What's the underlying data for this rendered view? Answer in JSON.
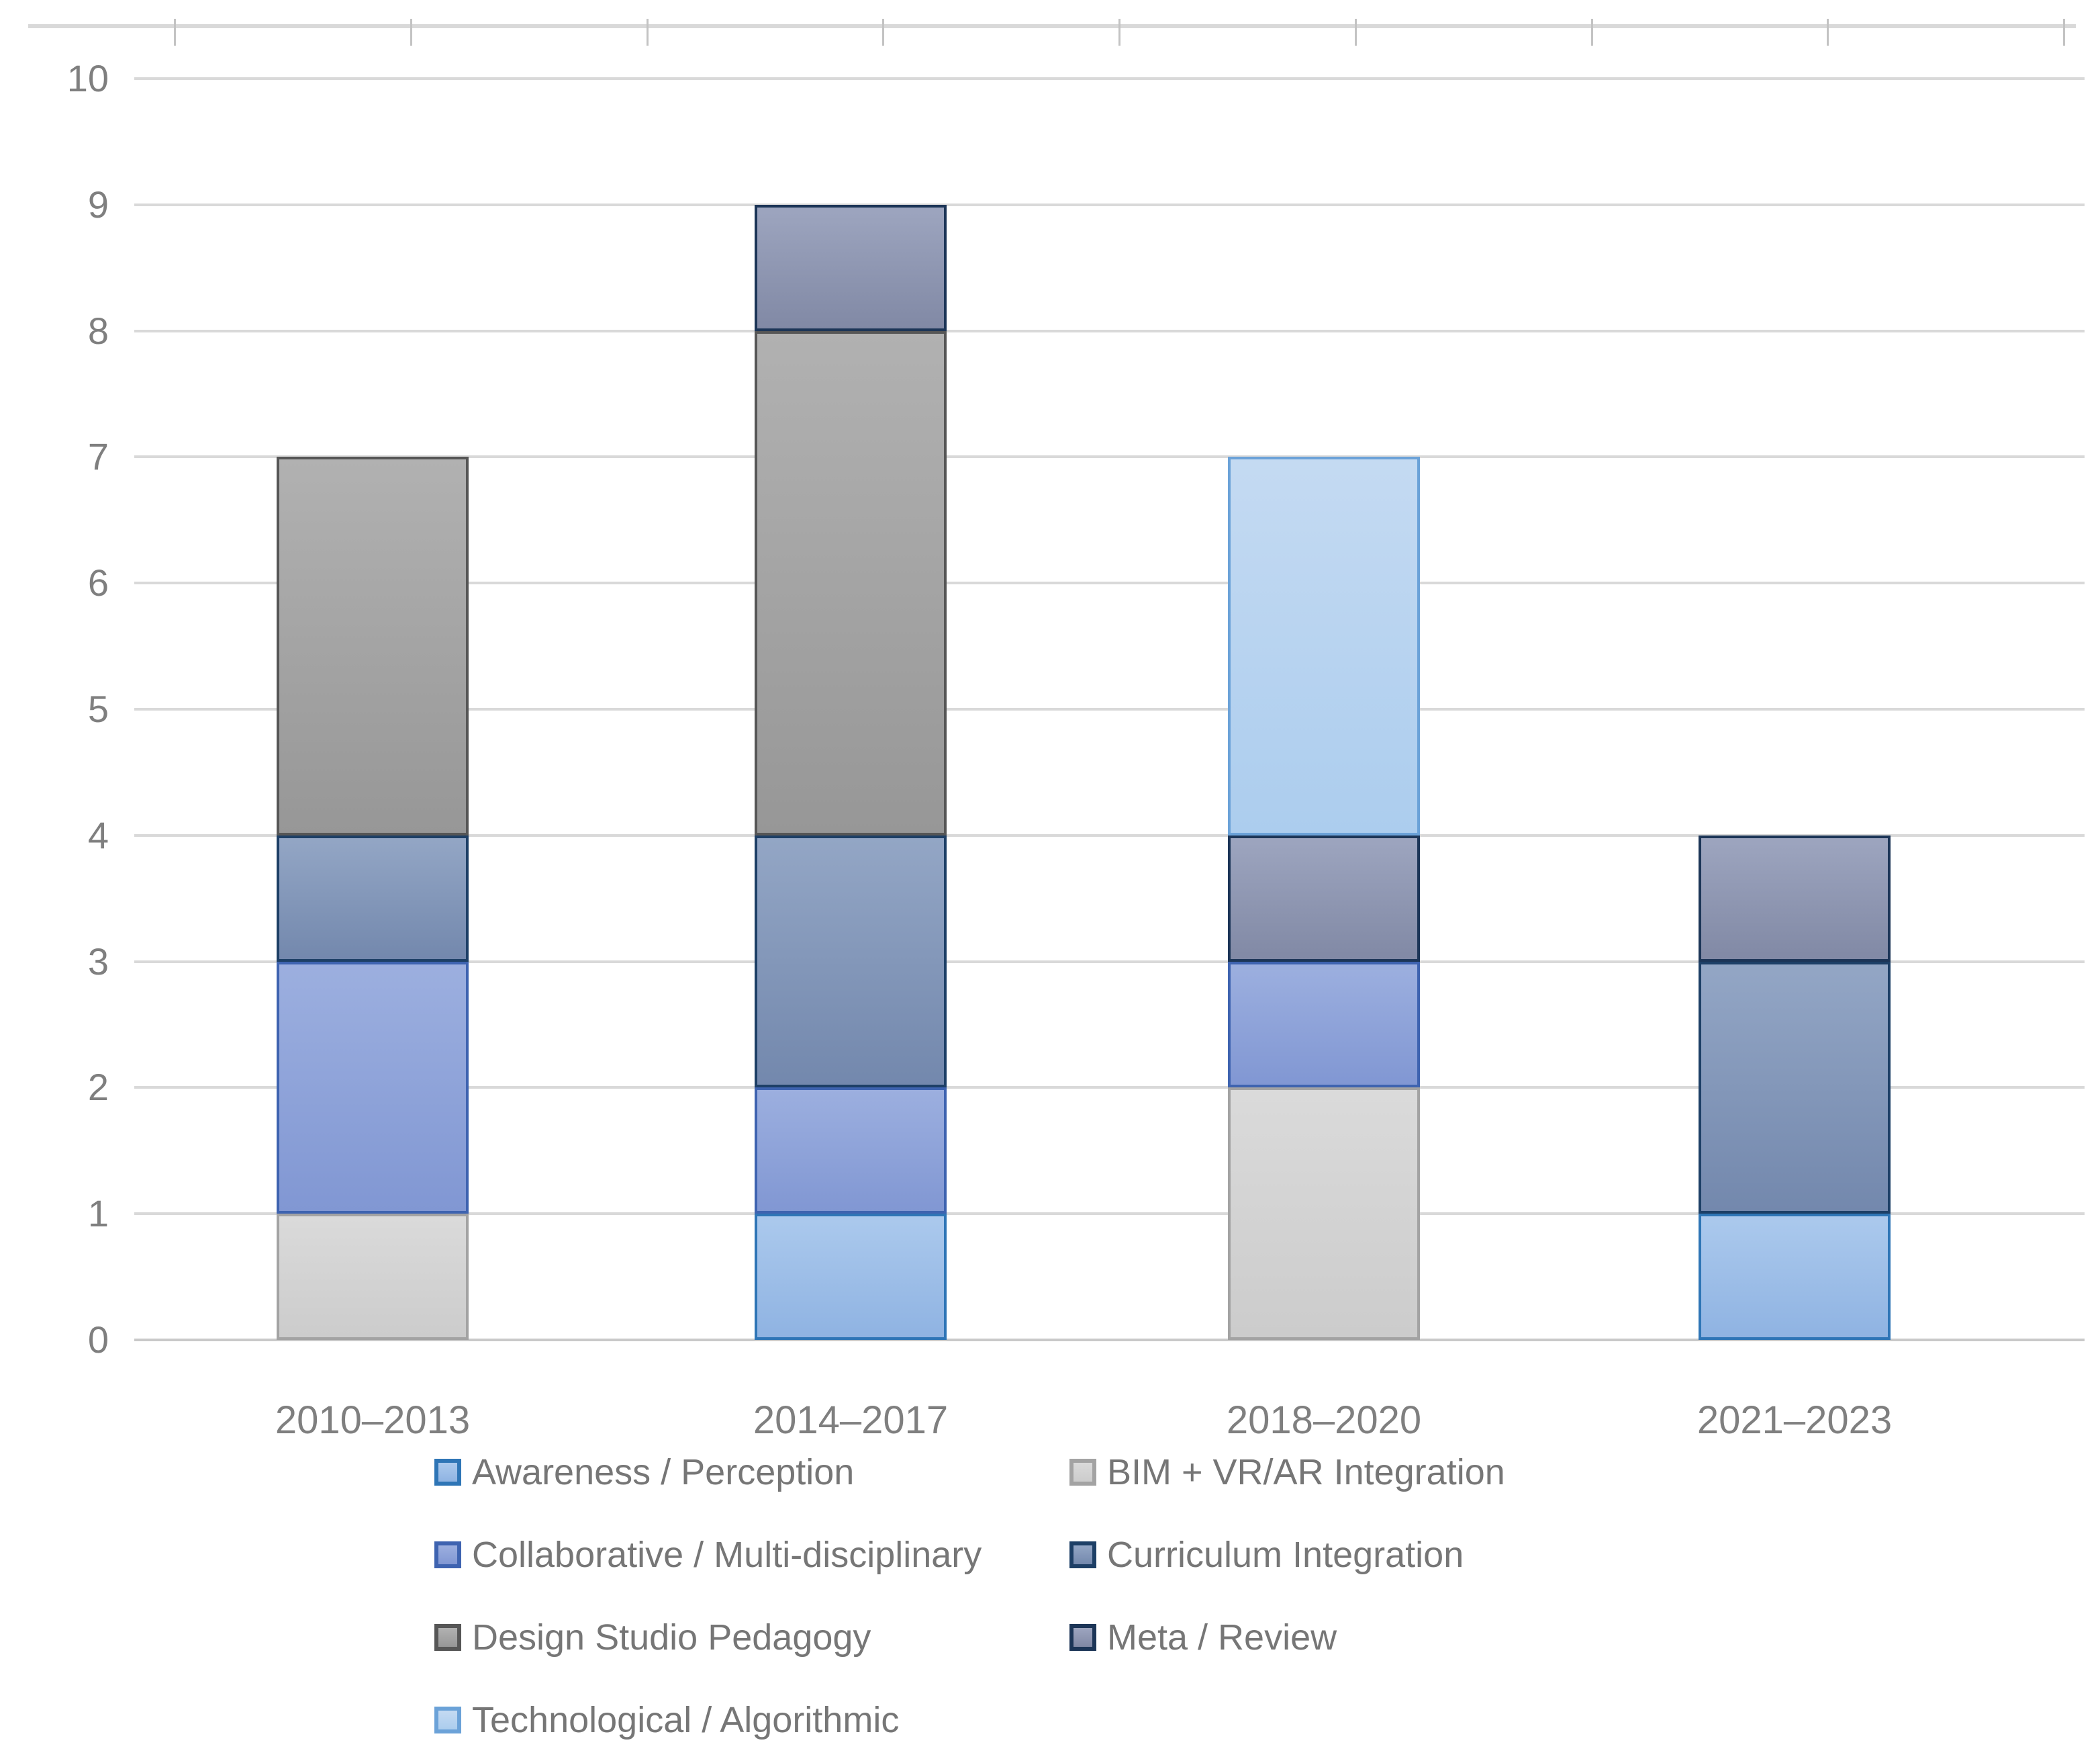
{
  "chart_data": {
    "type": "bar",
    "stacked": true,
    "title": "",
    "xlabel": "",
    "ylabel": "",
    "categories": [
      "2010–2013",
      "2014–2017",
      "2018–2020",
      "2021–2023"
    ],
    "series": [
      {
        "name": "Awareness / Perception",
        "values": [
          0,
          1,
          0,
          1
        ],
        "fill_top": "#abc9ed",
        "fill_bottom": "#8fb3e2",
        "border": "#2e75b6"
      },
      {
        "name": "BIM + VR/AR Integration",
        "values": [
          1,
          0,
          2,
          0
        ],
        "fill_top": "#dadada",
        "fill_bottom": "#cccccc",
        "border": "#a3a3a3"
      },
      {
        "name": "Collaborative / Multi-disciplinary",
        "values": [
          2,
          1,
          1,
          0
        ],
        "fill_top": "#9cafdf",
        "fill_bottom": "#8197d3",
        "border": "#3e63b0"
      },
      {
        "name": "Curriculum Integration",
        "values": [
          1,
          2,
          0,
          2
        ],
        "fill_top": "#93a6c5",
        "fill_bottom": "#7388ad",
        "border": "#1d3f66"
      },
      {
        "name": "Design Studio Pedagogy",
        "values": [
          3,
          4,
          0,
          0
        ],
        "fill_top": "#b1b1b1",
        "fill_bottom": "#979797",
        "border": "#565656"
      },
      {
        "name": "Meta / Review",
        "values": [
          0,
          1,
          1,
          1
        ],
        "fill_top": "#9da5bf",
        "fill_bottom": "#8189a5",
        "border": "#1c3557"
      },
      {
        "name": "Technological / Algorithmic",
        "values": [
          0,
          0,
          3,
          0
        ],
        "fill_top": "#c4daf2",
        "fill_bottom": "#accdee",
        "border": "#6ba2d8"
      }
    ],
    "totals": [
      7,
      9,
      7,
      4
    ],
    "ylim": [
      0,
      10
    ],
    "yticks": [
      0,
      1,
      2,
      3,
      4,
      5,
      6,
      7,
      8,
      9,
      10
    ],
    "grid": true,
    "gridline_color": "#d9d9d9",
    "axis_text_color": "#7f7f7f",
    "legend_position": "bottom",
    "legend_columns": 2
  }
}
